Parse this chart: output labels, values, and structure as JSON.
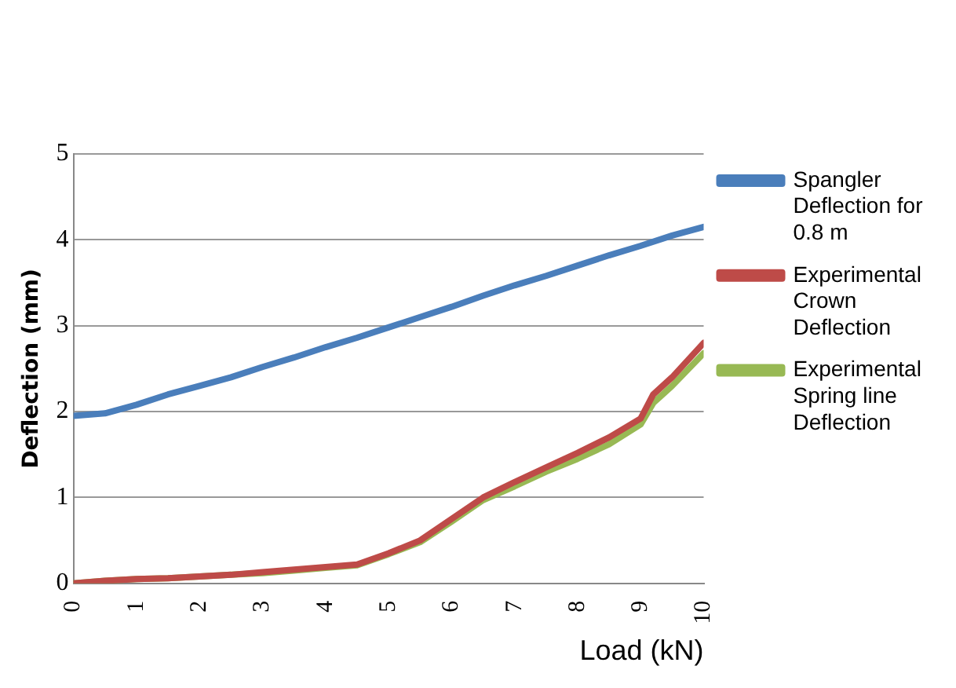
{
  "chart_data": {
    "type": "line",
    "xlabel": "Load (kN)",
    "ylabel": "Deflection (mm)",
    "xlim": [
      0,
      10
    ],
    "xticks": [
      0,
      1,
      2,
      3,
      4,
      5,
      6,
      7,
      8,
      9,
      10
    ],
    "ylim": [
      0,
      5
    ],
    "yticks": [
      0,
      1,
      2,
      3,
      4,
      5
    ],
    "grid": "y",
    "legend": "right",
    "marker": "none",
    "series": [
      {
        "name": "Spangler Deflection for 0.8 m",
        "color": "#4a7ebb",
        "x": [
          0,
          0.5,
          1,
          1.5,
          2,
          2.5,
          3,
          3.5,
          4,
          4.5,
          5,
          5.5,
          6,
          6.5,
          7,
          7.5,
          8,
          8.5,
          9,
          9.5,
          10
        ],
        "values": [
          1.95,
          1.98,
          2.08,
          2.2,
          2.3,
          2.4,
          2.52,
          2.63,
          2.75,
          2.86,
          2.98,
          3.1,
          3.22,
          3.35,
          3.47,
          3.58,
          3.7,
          3.82,
          3.93,
          4.05,
          4.15
        ]
      },
      {
        "name": "Experimental Crown Deflection",
        "color": "#be4b48",
        "x": [
          0,
          0.5,
          1,
          1.5,
          2,
          2.5,
          3,
          3.5,
          4,
          4.5,
          5,
          5.5,
          6,
          6.5,
          7,
          7.5,
          8,
          8.5,
          9,
          9.2,
          9.5,
          10
        ],
        "values": [
          0,
          0.03,
          0.05,
          0.06,
          0.08,
          0.1,
          0.13,
          0.16,
          0.19,
          0.22,
          0.35,
          0.5,
          0.75,
          1.0,
          1.18,
          1.35,
          1.52,
          1.7,
          1.92,
          2.2,
          2.4,
          2.8
        ]
      },
      {
        "name": "Experimental Spring line Deflection",
        "color": "#98b954",
        "x": [
          0,
          0.5,
          1,
          1.5,
          2,
          2.5,
          3,
          3.5,
          4,
          4.5,
          5,
          5.5,
          6,
          6.5,
          7,
          7.5,
          8,
          8.5,
          9,
          9.2,
          9.5,
          10
        ],
        "values": [
          0,
          0.03,
          0.05,
          0.06,
          0.08,
          0.1,
          0.12,
          0.15,
          0.18,
          0.21,
          0.34,
          0.48,
          0.72,
          0.97,
          1.13,
          1.3,
          1.45,
          1.62,
          1.85,
          2.1,
          2.3,
          2.68
        ]
      }
    ]
  }
}
